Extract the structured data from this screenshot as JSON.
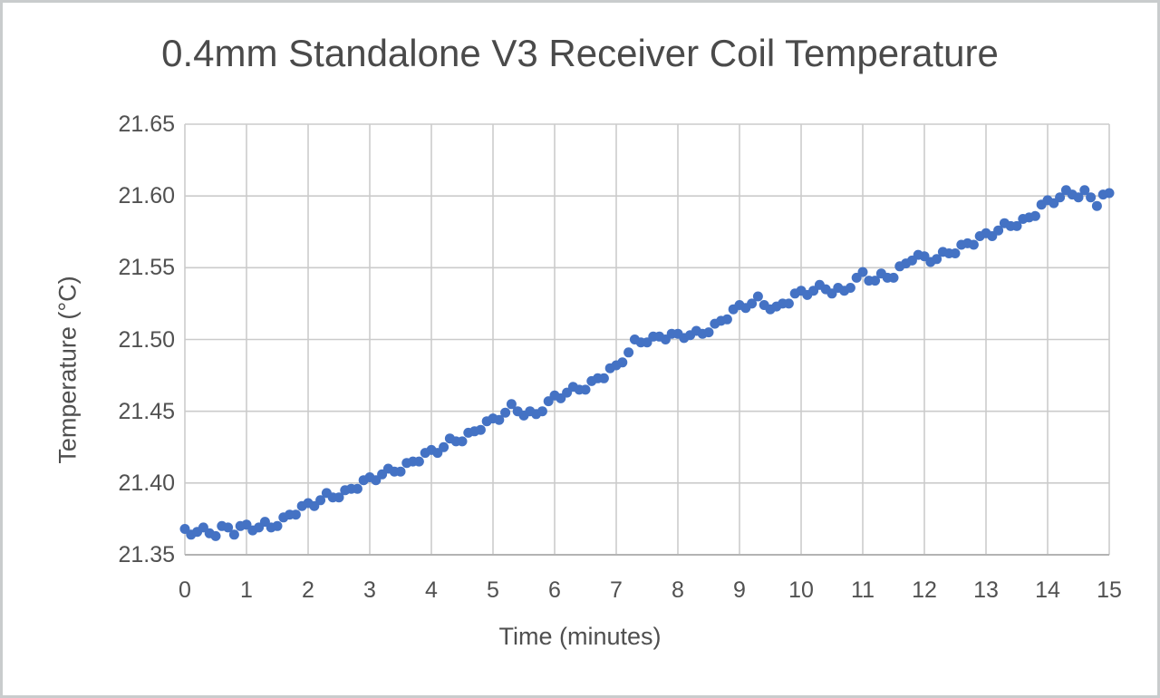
{
  "chart_data": {
    "type": "scatter",
    "title": "0.4mm Standalone V3 Receiver Coil Temperature",
    "xlabel": "Time (minutes)",
    "ylabel": "Temperature (°C)",
    "xlim": [
      0,
      15
    ],
    "ylim": [
      21.35,
      21.65
    ],
    "grid": true,
    "legend": "none",
    "x_tick_labels": [
      "0",
      "1",
      "2",
      "3",
      "4",
      "5",
      "6",
      "7",
      "8",
      "9",
      "10",
      "11",
      "12",
      "13",
      "14",
      "15"
    ],
    "y_tick_labels": [
      "21.35",
      "21.40",
      "21.45",
      "21.50",
      "21.55",
      "21.60",
      "21.65"
    ],
    "y_ticks": [
      21.35,
      21.4,
      21.45,
      21.5,
      21.55,
      21.6,
      21.65
    ],
    "x_ticks": [
      0,
      1,
      2,
      3,
      4,
      5,
      6,
      7,
      8,
      9,
      10,
      11,
      12,
      13,
      14,
      15
    ],
    "series": [
      {
        "x": [
          0,
          0.1,
          0.2,
          0.3,
          0.4,
          0.5,
          0.6,
          0.7,
          0.8,
          0.9,
          1,
          1.1,
          1.2,
          1.3,
          1.4,
          1.5,
          1.6,
          1.7,
          1.8,
          1.9,
          2,
          2.1,
          2.2,
          2.3,
          2.4,
          2.5,
          2.6,
          2.7,
          2.8,
          2.9,
          3,
          3.1,
          3.2,
          3.3,
          3.4,
          3.5,
          3.6,
          3.7,
          3.8,
          3.9,
          4,
          4.1,
          4.2,
          4.3,
          4.4,
          4.5,
          4.6,
          4.7,
          4.8,
          4.9,
          5,
          5.1,
          5.2,
          5.3,
          5.4,
          5.5,
          5.6,
          5.7,
          5.8,
          5.9,
          6,
          6.1,
          6.2,
          6.3,
          6.4,
          6.5,
          6.6,
          6.7,
          6.8,
          6.9,
          7,
          7.1,
          7.2,
          7.3,
          7.4,
          7.5,
          7.6,
          7.7,
          7.8,
          7.9,
          8,
          8.1,
          8.2,
          8.3,
          8.4,
          8.5,
          8.6,
          8.7,
          8.8,
          8.9,
          9,
          9.1,
          9.2,
          9.3,
          9.4,
          9.5,
          9.6,
          9.7,
          9.8,
          9.9,
          10,
          10.1,
          10.2,
          10.3,
          10.4,
          10.5,
          10.6,
          10.7,
          10.8,
          10.9,
          11,
          11.1,
          11.2,
          11.3,
          11.4,
          11.5,
          11.6,
          11.7,
          11.8,
          11.9,
          12,
          12.1,
          12.2,
          12.3,
          12.4,
          12.5,
          12.6,
          12.7,
          12.8,
          12.9,
          13,
          13.1,
          13.2,
          13.3,
          13.4,
          13.5,
          13.6,
          13.7,
          13.8,
          13.9,
          14,
          14.1,
          14.2,
          14.3,
          14.4,
          14.5,
          14.6,
          14.7,
          14.8,
          14.9,
          15
        ],
        "y": [
          21.368,
          21.364,
          21.366,
          21.369,
          21.365,
          21.363,
          21.37,
          21.369,
          21.364,
          21.37,
          21.371,
          21.367,
          21.369,
          21.373,
          21.369,
          21.37,
          21.376,
          21.378,
          21.378,
          21.384,
          21.386,
          21.384,
          21.388,
          21.393,
          21.39,
          21.39,
          21.395,
          21.396,
          21.396,
          21.402,
          21.404,
          21.402,
          21.406,
          21.41,
          21.408,
          21.408,
          21.414,
          21.415,
          21.415,
          21.421,
          21.423,
          21.421,
          21.425,
          21.431,
          21.429,
          21.429,
          21.435,
          21.436,
          21.437,
          21.443,
          21.445,
          21.444,
          21.449,
          21.455,
          21.45,
          21.447,
          21.45,
          21.448,
          21.45,
          21.457,
          21.461,
          21.459,
          21.463,
          21.467,
          21.465,
          21.465,
          21.471,
          21.473,
          21.473,
          21.48,
          21.482,
          21.484,
          21.491,
          21.5,
          21.498,
          21.498,
          21.502,
          21.502,
          21.5,
          21.504,
          21.504,
          21.501,
          21.503,
          21.506,
          21.504,
          21.505,
          21.511,
          21.513,
          21.514,
          21.521,
          21.524,
          21.522,
          21.525,
          21.53,
          21.524,
          21.521,
          21.523,
          21.525,
          21.525,
          21.532,
          21.534,
          21.531,
          21.534,
          21.538,
          21.535,
          21.532,
          21.536,
          21.534,
          21.536,
          21.543,
          21.547,
          21.541,
          21.541,
          21.546,
          21.543,
          21.543,
          21.551,
          21.553,
          21.555,
          21.559,
          21.558,
          21.554,
          21.556,
          21.561,
          21.56,
          21.56,
          21.566,
          21.567,
          21.566,
          21.572,
          21.574,
          21.572,
          21.576,
          21.581,
          21.579,
          21.579,
          21.584,
          21.585,
          21.586,
          21.594,
          21.597,
          21.595,
          21.599,
          21.604,
          21.601,
          21.599,
          21.604,
          21.599,
          21.593,
          21.601,
          21.602
        ]
      }
    ],
    "colors": {
      "marker": "#4472c4",
      "gridline": "#cbcbcb",
      "axis_line": "#b3b3b3",
      "title_text": "#4a4a4a",
      "tick_text": "#515151",
      "frame_border": "#c9cccd",
      "background": "#ffffff"
    }
  }
}
